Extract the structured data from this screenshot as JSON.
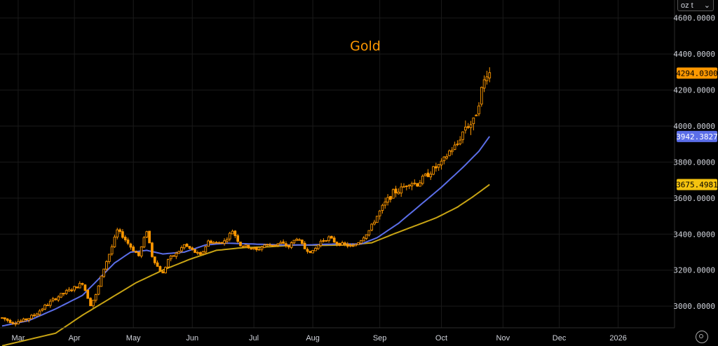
{
  "chart_data": {
    "type": "candlestick",
    "title": "Gold",
    "unit": "oz t",
    "ylim": [
      2880,
      4700
    ],
    "y_ticks": [
      3000,
      3200,
      3400,
      3600,
      3800,
      4000,
      4200,
      4400,
      4600
    ],
    "y_tick_labels": [
      "3000.0000",
      "3200.0000",
      "3400.0000",
      "3600.0000",
      "3800.0000",
      "4000.0000",
      "4200.0000",
      "4400.0000",
      "4600.0000"
    ],
    "x_months": [
      "Mar",
      "Apr",
      "May",
      "Jun",
      "Jul",
      "Aug",
      "Sep",
      "Oct",
      "Nov",
      "Dec",
      "2026"
    ],
    "grid": true,
    "colors": {
      "candle": "#ff9800",
      "ma_fast": "#5b6ee8",
      "ma_slow": "#c8a414",
      "last_price_badge": "#ff9800",
      "ma_fast_badge": "#5b6ee8",
      "ma_slow_badge": "#f5c30f"
    },
    "badges": [
      {
        "name": "last-price",
        "value": "4294.0300"
      },
      {
        "name": "ma-fast",
        "value": "3942.3827"
      },
      {
        "name": "ma-slow",
        "value": "3675.4981"
      }
    ],
    "close_anchors": [
      [
        0,
        2935
      ],
      [
        4,
        2910
      ],
      [
        8,
        2920
      ],
      [
        12,
        2950
      ],
      [
        16,
        3000
      ],
      [
        20,
        3045
      ],
      [
        24,
        3080
      ],
      [
        28,
        3110
      ],
      [
        30,
        3130
      ],
      [
        33,
        3010
      ],
      [
        35,
        3060
      ],
      [
        38,
        3210
      ],
      [
        41,
        3330
      ],
      [
        43,
        3420
      ],
      [
        45,
        3390
      ],
      [
        48,
        3330
      ],
      [
        51,
        3280
      ],
      [
        54,
        3420
      ],
      [
        56,
        3280
      ],
      [
        58,
        3220
      ],
      [
        60,
        3180
      ],
      [
        62,
        3260
      ],
      [
        65,
        3290
      ],
      [
        68,
        3340
      ],
      [
        71,
        3310
      ],
      [
        74,
        3280
      ],
      [
        77,
        3360
      ],
      [
        80,
        3350
      ],
      [
        83,
        3360
      ],
      [
        86,
        3420
      ],
      [
        89,
        3340
      ],
      [
        92,
        3330
      ],
      [
        95,
        3310
      ],
      [
        98,
        3340
      ],
      [
        101,
        3340
      ],
      [
        104,
        3350
      ],
      [
        107,
        3330
      ],
      [
        110,
        3380
      ],
      [
        113,
        3320
      ],
      [
        116,
        3300
      ],
      [
        119,
        3360
      ],
      [
        122,
        3380
      ],
      [
        125,
        3350
      ],
      [
        128,
        3340
      ],
      [
        131,
        3330
      ],
      [
        134,
        3370
      ],
      [
        137,
        3420
      ],
      [
        140,
        3500
      ],
      [
        143,
        3570
      ],
      [
        146,
        3630
      ],
      [
        149,
        3650
      ],
      [
        152,
        3690
      ],
      [
        155,
        3680
      ],
      [
        158,
        3720
      ],
      [
        161,
        3760
      ],
      [
        164,
        3790
      ],
      [
        167,
        3860
      ],
      [
        170,
        3900
      ],
      [
        173,
        4000
      ],
      [
        176,
        4020
      ],
      [
        179,
        4200
      ],
      [
        181,
        4300
      ],
      [
        182,
        4294
      ]
    ],
    "ma_fast_anchors": [
      [
        0,
        2890
      ],
      [
        10,
        2920
      ],
      [
        20,
        2985
      ],
      [
        30,
        3060
      ],
      [
        36,
        3150
      ],
      [
        42,
        3240
      ],
      [
        48,
        3300
      ],
      [
        54,
        3310
      ],
      [
        60,
        3290
      ],
      [
        68,
        3300
      ],
      [
        76,
        3340
      ],
      [
        84,
        3350
      ],
      [
        94,
        3345
      ],
      [
        104,
        3340
      ],
      [
        114,
        3340
      ],
      [
        124,
        3345
      ],
      [
        134,
        3345
      ],
      [
        140,
        3380
      ],
      [
        148,
        3460
      ],
      [
        156,
        3560
      ],
      [
        164,
        3660
      ],
      [
        172,
        3770
      ],
      [
        178,
        3860
      ],
      [
        182,
        3942.3827
      ]
    ],
    "ma_slow_anchors": [
      [
        0,
        2780
      ],
      [
        20,
        2850
      ],
      [
        30,
        2950
      ],
      [
        40,
        3040
      ],
      [
        50,
        3130
      ],
      [
        60,
        3200
      ],
      [
        70,
        3260
      ],
      [
        80,
        3310
      ],
      [
        90,
        3325
      ],
      [
        100,
        3330
      ],
      [
        110,
        3340
      ],
      [
        120,
        3338
      ],
      [
        130,
        3340
      ],
      [
        138,
        3352
      ],
      [
        146,
        3400
      ],
      [
        154,
        3445
      ],
      [
        162,
        3490
      ],
      [
        170,
        3550
      ],
      [
        176,
        3610
      ],
      [
        182,
        3675.4981
      ]
    ]
  }
}
